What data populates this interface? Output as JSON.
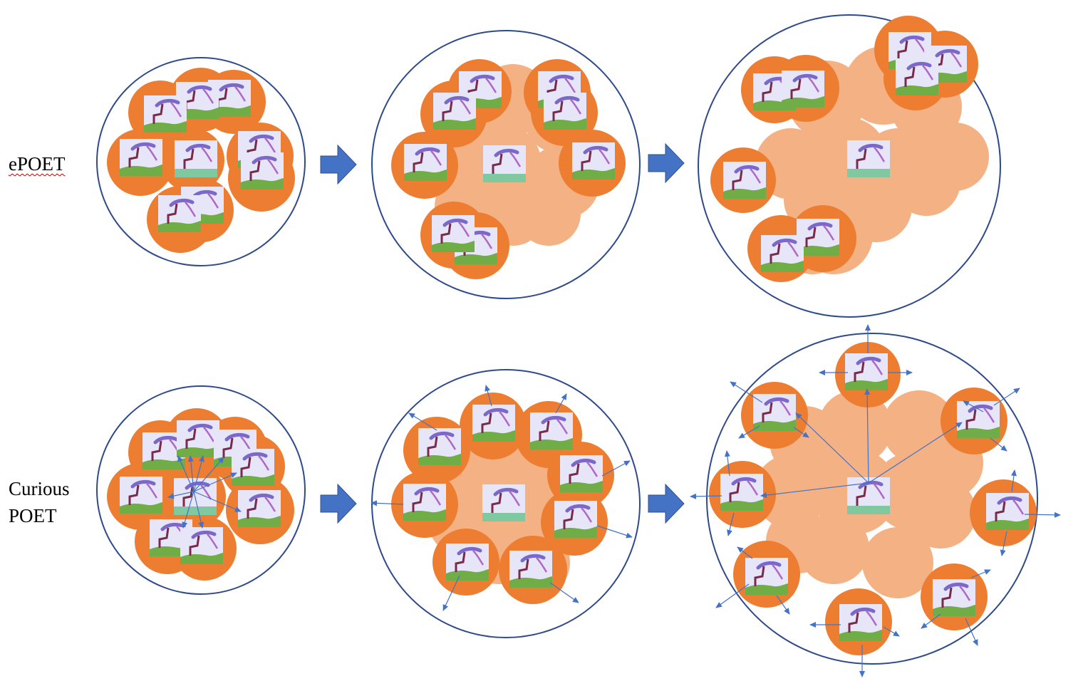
{
  "rows": {
    "epoet": {
      "label": "ePOET"
    },
    "curious": {
      "label_line1": "Curious",
      "label_line2": "POET"
    }
  },
  "colors": {
    "archive_outline": "#2e4a8a",
    "active_agent": "#ed7d31",
    "past_region": "#f4b183",
    "arrow": "#4472c4",
    "env_sky": "#e6e6f8",
    "env_ground": "#70ad47",
    "env_flat_ground": "#7fc8a0",
    "robot_body": "#7b68c8",
    "robot_legs": "#7a2a4a"
  },
  "icons": [
    "block-arrow-right-icon",
    "environment-thumbnail-icon",
    "exploration-arrow-icon"
  ]
}
